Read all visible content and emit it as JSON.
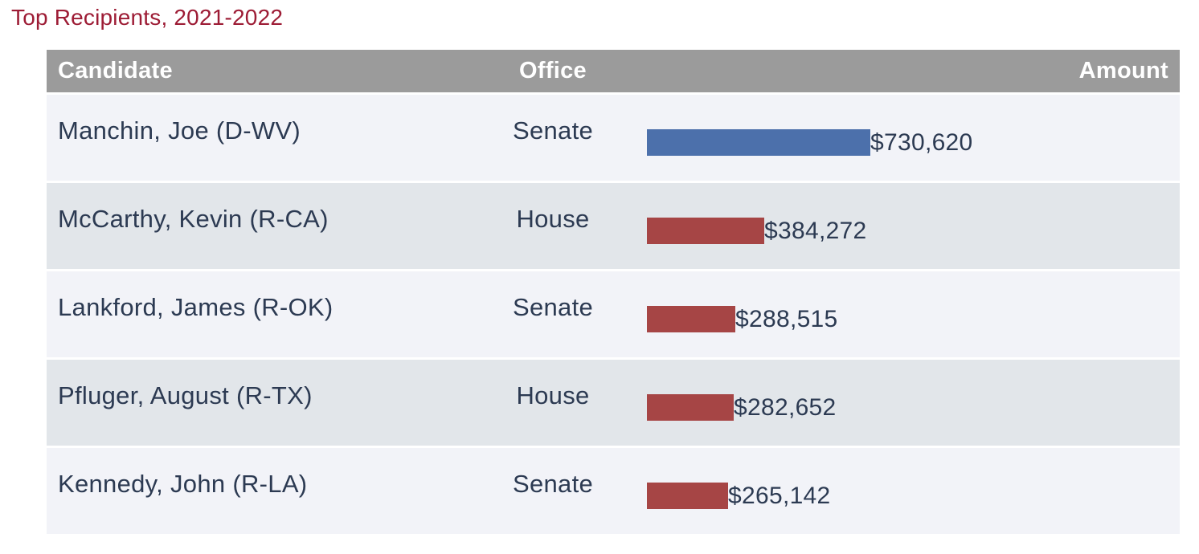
{
  "title": "Top Recipients, 2021-2022",
  "table": {
    "headers": {
      "candidate": "Candidate",
      "office": "Office",
      "amount": "Amount"
    },
    "rows": [
      {
        "candidate": "Manchin, Joe (D-WV)",
        "office": "Senate",
        "amount": "$730,620",
        "value": 730620,
        "party": "D"
      },
      {
        "candidate": "McCarthy, Kevin (R-CA)",
        "office": "House",
        "amount": "$384,272",
        "value": 384272,
        "party": "R"
      },
      {
        "candidate": "Lankford, James (R-OK)",
        "office": "Senate",
        "amount": "$288,515",
        "value": 288515,
        "party": "R"
      },
      {
        "candidate": "Pfluger, August (R-TX)",
        "office": "House",
        "amount": "$282,652",
        "value": 282652,
        "party": "R"
      },
      {
        "candidate": "Kennedy, John (R-LA)",
        "office": "Senate",
        "amount": "$265,142",
        "value": 265142,
        "party": "R"
      }
    ]
  },
  "colors": {
    "title_text": "#9d1c35",
    "header_bg": "#9b9b9b",
    "header_text": "#ffffff",
    "row_odd_bg": "#f2f3f8",
    "row_even_bg": "#e2e6ea",
    "body_text": "#2c3a52",
    "democrat_bar": "#4c70ab",
    "republican_bar": "#a64545"
  },
  "chart_data": {
    "type": "bar",
    "orientation": "horizontal",
    "title": "Top Recipients, 2021-2022",
    "categories": [
      "Manchin, Joe (D-WV)",
      "McCarthy, Kevin (R-CA)",
      "Lankford, James (R-OK)",
      "Pfluger, August (R-TX)",
      "Kennedy, John (R-LA)"
    ],
    "series": [
      {
        "name": "Amount",
        "values": [
          730620,
          384272,
          288515,
          282652,
          265142
        ]
      }
    ],
    "data_labels": [
      "$730,620",
      "$384,272",
      "$288,515",
      "$282,652",
      "$265,142"
    ],
    "bar_colors": [
      "#4c70ab",
      "#a64545",
      "#a64545",
      "#a64545",
      "#a64545"
    ],
    "xlim": [
      0,
      730620
    ],
    "grid": false,
    "legend": false
  }
}
